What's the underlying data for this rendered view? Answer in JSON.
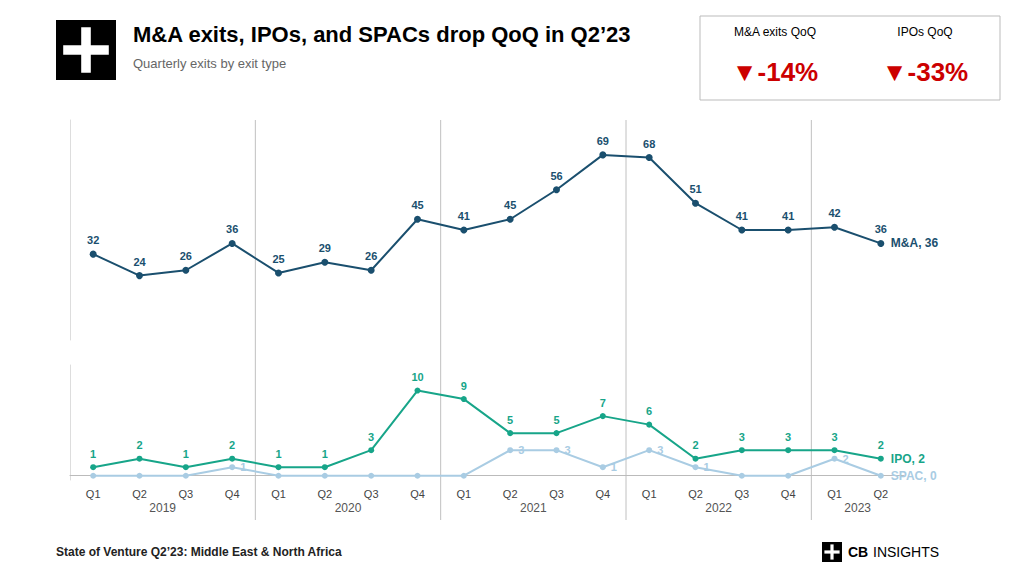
{
  "chart_data": [
    {
      "type": "line",
      "title": "M&A exits, IPOs, and SPACs drop QoQ in Q2’23",
      "subtitle": "Quarterly exits by exit type",
      "categories": [
        "Q1",
        "Q2",
        "Q3",
        "Q4",
        "Q1",
        "Q2",
        "Q3",
        "Q4",
        "Q1",
        "Q2",
        "Q3",
        "Q4",
        "Q1",
        "Q2",
        "Q3",
        "Q4",
        "Q1",
        "Q2"
      ],
      "series": [
        {
          "name": "M&A, 36",
          "color": "#1a4f6e",
          "data_labels": true,
          "values": [
            32,
            24,
            26,
            36,
            25,
            29,
            26,
            45,
            41,
            45,
            56,
            69,
            68,
            51,
            41,
            41,
            42,
            36
          ]
        }
      ],
      "ylim": [
        0,
        82
      ],
      "tick_labels": false,
      "grid": false,
      "annotations": [
        {
          "label": "M&A exits QoQ",
          "text": "▼-14%",
          "color": "#cc0000"
        },
        {
          "label": "IPOs QoQ",
          "text": "▼-33%",
          "color": "#cc0000"
        }
      ]
    },
    {
      "type": "line",
      "categories": [
        "Q1",
        "Q2",
        "Q3",
        "Q4",
        "Q1",
        "Q2",
        "Q3",
        "Q4",
        "Q1",
        "Q2",
        "Q3",
        "Q4",
        "Q1",
        "Q2",
        "Q3",
        "Q4",
        "Q1",
        "Q2"
      ],
      "series": [
        {
          "name": "IPO, 2",
          "color": "#17a589",
          "data_labels": true,
          "values": [
            1,
            2,
            1,
            2,
            1,
            1,
            3,
            10,
            9,
            5,
            5,
            7,
            6,
            2,
            3,
            3,
            3,
            2
          ]
        },
        {
          "name": "SPAC, 0",
          "color": "#a9cce3",
          "data_labels": true,
          "values": [
            0,
            0,
            0,
            1,
            0,
            0,
            0,
            0,
            0,
            3,
            3,
            1,
            3,
            1,
            0,
            0,
            2,
            0
          ],
          "value_labels": [
            null,
            null,
            null,
            "1",
            null,
            null,
            null,
            null,
            null,
            "3",
            "3",
            "1",
            "3",
            "1",
            null,
            null,
            "2",
            null
          ]
        }
      ],
      "ylim": [
        -0.5,
        13
      ],
      "tick_labels": "x",
      "grid": false,
      "x_groups": [
        {
          "label": "2019",
          "center": 1.5
        },
        {
          "label": "2020",
          "center": 5.5
        },
        {
          "label": "2021",
          "center": 9.5
        },
        {
          "label": "2022",
          "center": 13.5
        },
        {
          "label": "2023",
          "center": 16.5
        }
      ],
      "dividers": [
        3.5,
        7.5,
        11.5,
        15.5
      ]
    }
  ],
  "footer": "State of Venture Q2’23: Middle East & North Africa",
  "brand": [
    "CB",
    "INSIGHTS"
  ]
}
